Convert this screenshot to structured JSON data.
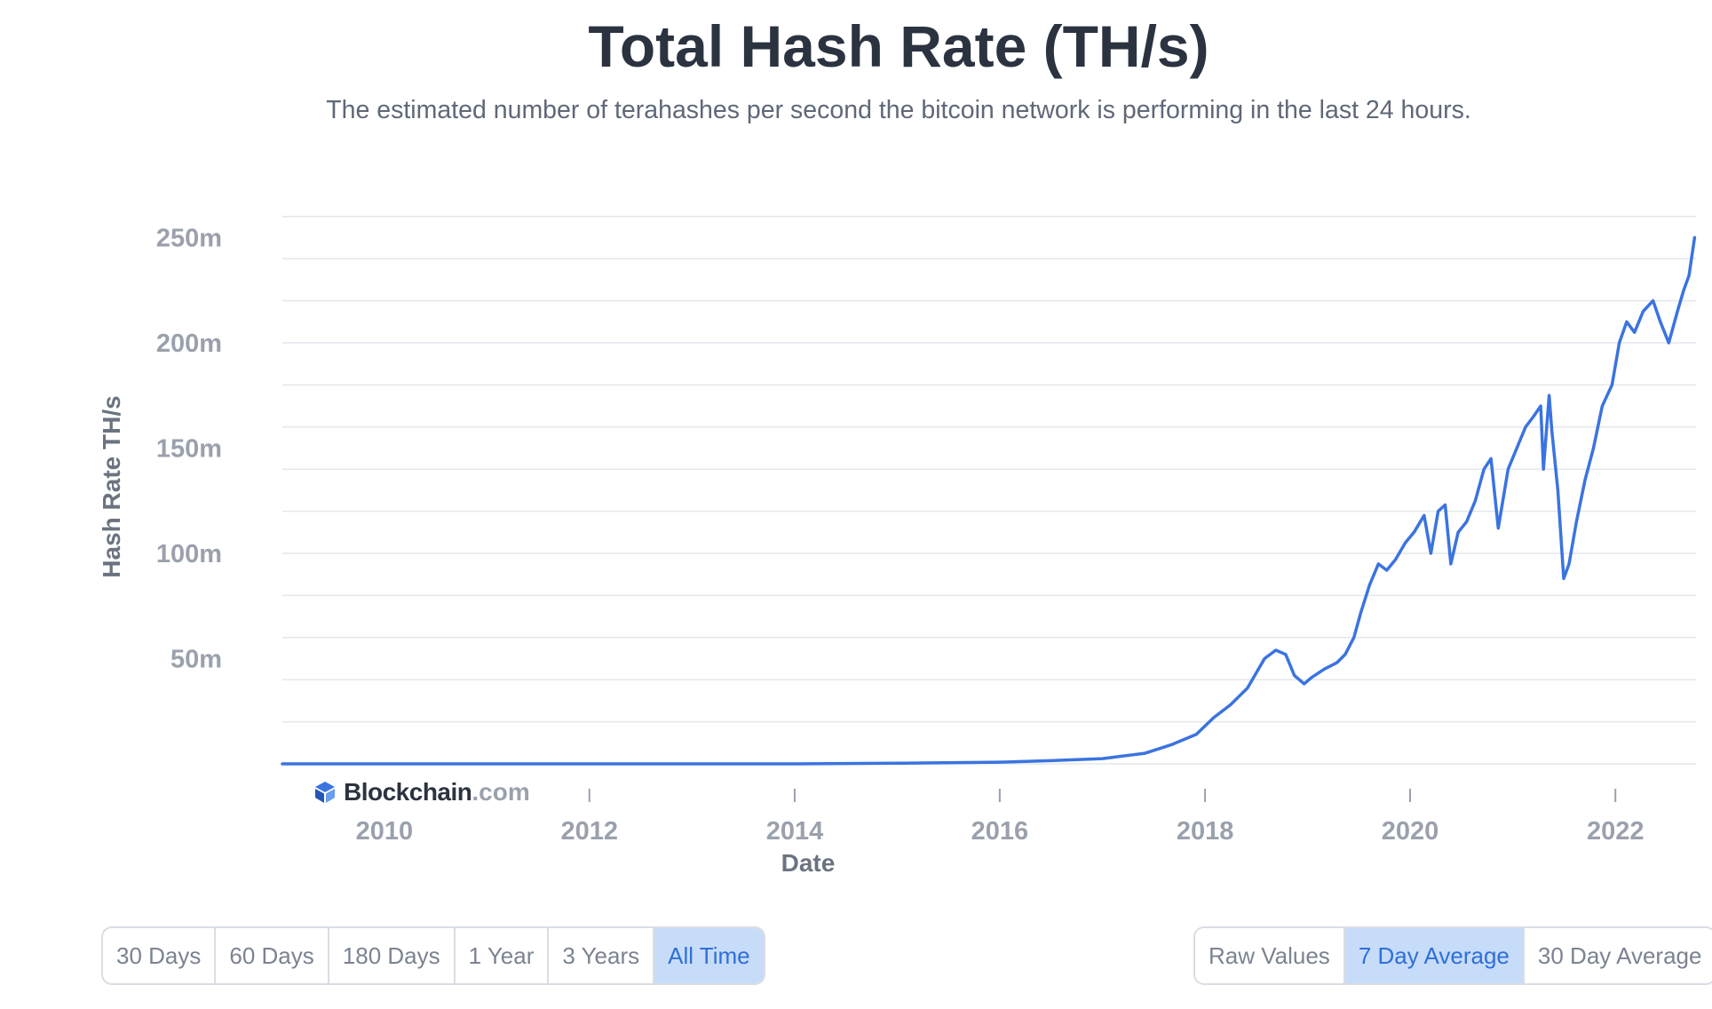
{
  "header": {
    "title": "Total Hash Rate (TH/s)",
    "subtitle": "The estimated number of terahashes per second the bitcoin network is performing in the last 24 hours."
  },
  "brand": {
    "name": "Blockchain",
    "suffix": ".com",
    "mark_color": "#2f6fd9"
  },
  "colors": {
    "line": "#3b73e0",
    "grid": "#e4e7ec",
    "active_bg": "#c7dcf8",
    "active_text": "#2f6fd9"
  },
  "range_buttons": [
    {
      "label": "30 Days",
      "active": false
    },
    {
      "label": "60 Days",
      "active": false
    },
    {
      "label": "180 Days",
      "active": false
    },
    {
      "label": "1 Year",
      "active": false
    },
    {
      "label": "3 Years",
      "active": false
    },
    {
      "label": "All Time",
      "active": true
    }
  ],
  "average_buttons": [
    {
      "label": "Raw Values",
      "active": false
    },
    {
      "label": "7 Day Average",
      "active": true
    },
    {
      "label": "30 Day Average",
      "active": false
    }
  ],
  "chart_data": {
    "type": "line",
    "title": "Total Hash Rate (TH/s)",
    "xlabel": "Date",
    "ylabel": "Hash Rate TH/s",
    "x_ticks": [
      "2010",
      "2012",
      "2014",
      "2016",
      "2018",
      "2020",
      "2022"
    ],
    "y_ticks": [
      "50m",
      "100m",
      "150m",
      "200m",
      "250m"
    ],
    "y_tick_values": [
      50000000,
      100000000,
      150000000,
      200000000,
      250000000
    ],
    "xlim": [
      "2009-01-03",
      "2022-10-15"
    ],
    "ylim": [
      0,
      260000000
    ],
    "grid": true,
    "series": [
      {
        "values_unit": "TH/s",
        "points": [
          [
            "2009-01-03",
            0
          ],
          [
            "2012-01-01",
            1e-05
          ],
          [
            "2014-01-01",
            10000
          ],
          [
            "2015-01-01",
            300000
          ],
          [
            "2016-01-01",
            800000
          ],
          [
            "2016-07-01",
            1500000
          ],
          [
            "2017-01-01",
            2500000
          ],
          [
            "2017-06-01",
            5000000
          ],
          [
            "2017-09-01",
            9000000
          ],
          [
            "2017-12-01",
            14000000
          ],
          [
            "2018-02-01",
            22000000
          ],
          [
            "2018-04-01",
            28000000
          ],
          [
            "2018-06-01",
            36000000
          ],
          [
            "2018-08-01",
            50000000
          ],
          [
            "2018-09-10",
            54000000
          ],
          [
            "2018-10-15",
            52000000
          ],
          [
            "2018-11-15",
            42000000
          ],
          [
            "2018-12-20",
            38000000
          ],
          [
            "2019-01-15",
            41000000
          ],
          [
            "2019-03-01",
            45000000
          ],
          [
            "2019-04-15",
            48000000
          ],
          [
            "2019-05-15",
            52000000
          ],
          [
            "2019-06-15",
            60000000
          ],
          [
            "2019-07-10",
            72000000
          ],
          [
            "2019-08-10",
            85000000
          ],
          [
            "2019-09-10",
            95000000
          ],
          [
            "2019-10-10",
            92000000
          ],
          [
            "2019-11-10",
            97000000
          ],
          [
            "2019-12-15",
            105000000
          ],
          [
            "2020-01-15",
            110000000
          ],
          [
            "2020-02-20",
            118000000
          ],
          [
            "2020-03-15",
            100000000
          ],
          [
            "2020-04-10",
            120000000
          ],
          [
            "2020-05-05",
            123000000
          ],
          [
            "2020-05-25",
            95000000
          ],
          [
            "2020-06-20",
            110000000
          ],
          [
            "2020-07-20",
            115000000
          ],
          [
            "2020-08-20",
            125000000
          ],
          [
            "2020-09-20",
            140000000
          ],
          [
            "2020-10-15",
            145000000
          ],
          [
            "2020-11-10",
            112000000
          ],
          [
            "2020-12-15",
            140000000
          ],
          [
            "2021-01-15",
            150000000
          ],
          [
            "2021-02-15",
            160000000
          ],
          [
            "2021-03-15",
            165000000
          ],
          [
            "2021-04-10",
            170000000
          ],
          [
            "2021-04-20",
            140000000
          ],
          [
            "2021-05-10",
            175000000
          ],
          [
            "2021-05-20",
            158000000
          ],
          [
            "2021-06-10",
            130000000
          ],
          [
            "2021-07-01",
            88000000
          ],
          [
            "2021-07-20",
            95000000
          ],
          [
            "2021-08-15",
            115000000
          ],
          [
            "2021-09-15",
            135000000
          ],
          [
            "2021-10-15",
            150000000
          ],
          [
            "2021-11-15",
            170000000
          ],
          [
            "2021-12-20",
            180000000
          ],
          [
            "2022-01-15",
            200000000
          ],
          [
            "2022-02-10",
            210000000
          ],
          [
            "2022-03-10",
            205000000
          ],
          [
            "2022-04-10",
            215000000
          ],
          [
            "2022-05-15",
            220000000
          ],
          [
            "2022-06-10",
            210000000
          ],
          [
            "2022-07-10",
            200000000
          ],
          [
            "2022-08-10",
            215000000
          ],
          [
            "2022-09-01",
            225000000
          ],
          [
            "2022-09-20",
            232000000
          ],
          [
            "2022-10-10",
            250000000
          ]
        ]
      }
    ]
  }
}
